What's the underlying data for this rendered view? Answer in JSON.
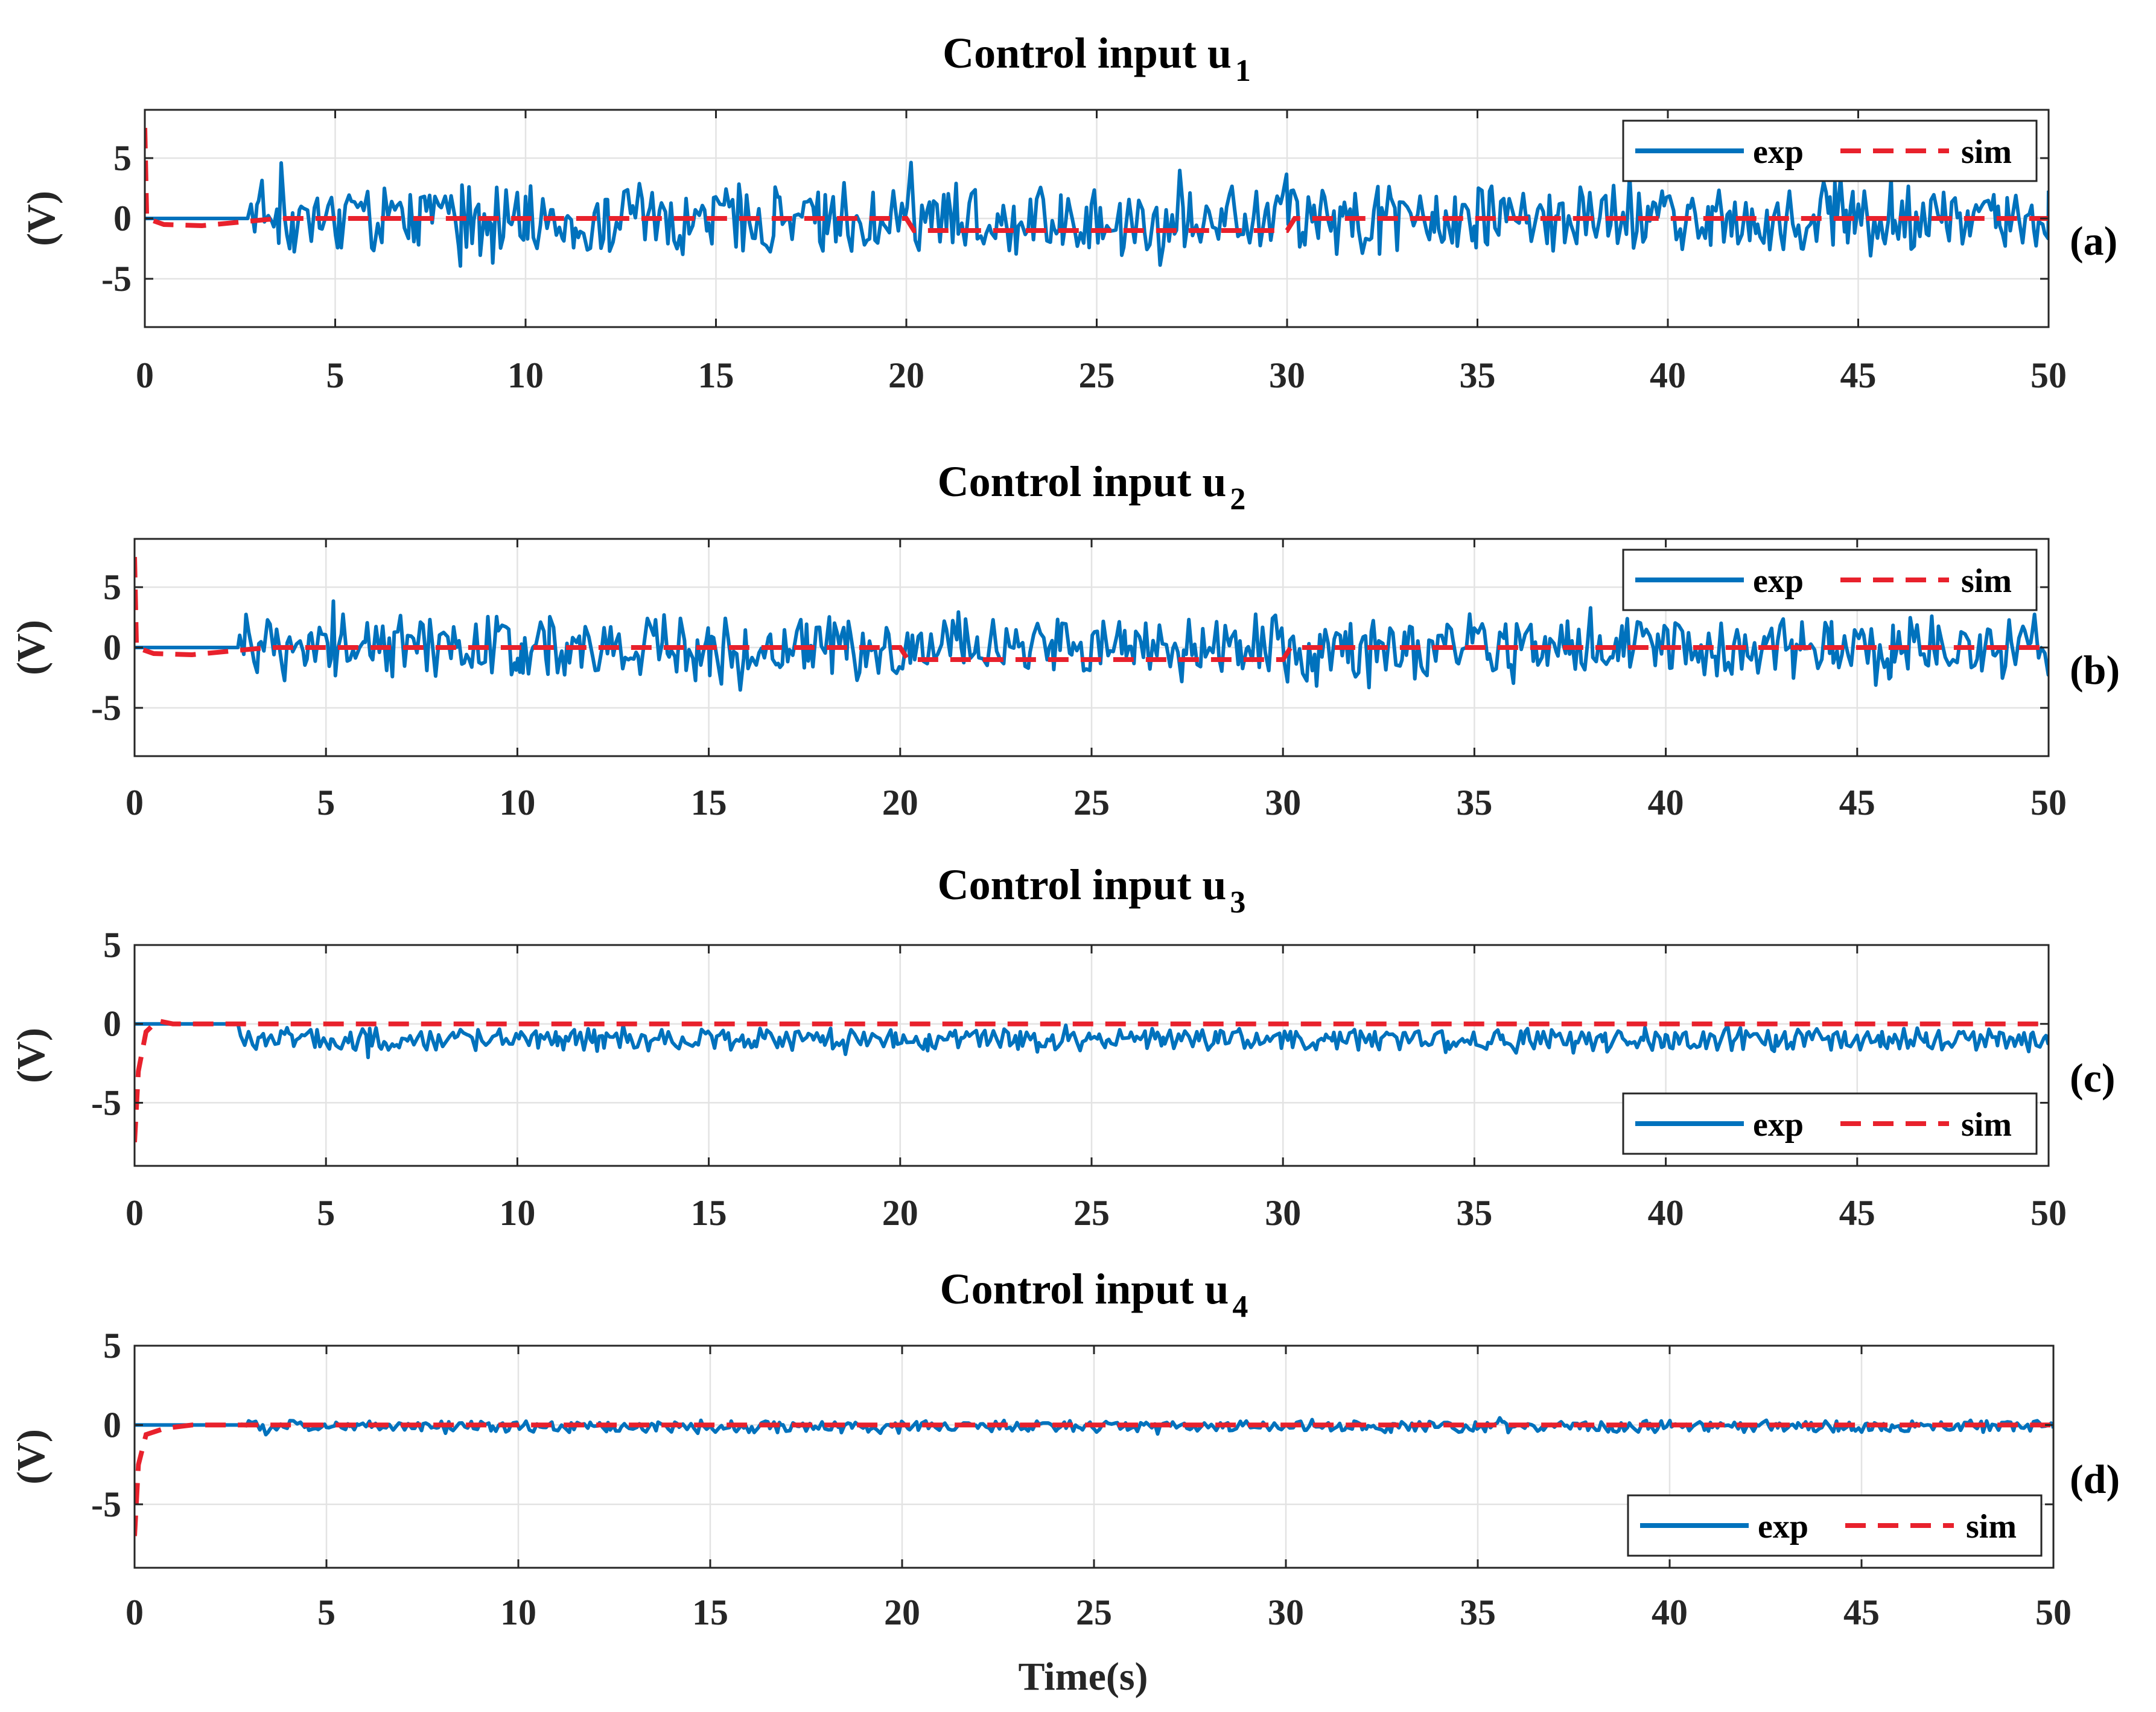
{
  "figure": {
    "xlabel": "Time(s)",
    "colors": {
      "exp": "#0072BD",
      "sim": "#E8212C"
    },
    "legend_labels": [
      "exp",
      "sim"
    ]
  },
  "chart_data": [
    {
      "type": "line",
      "title": "Control input u",
      "title_subscript": "1",
      "panel_tag": "(a)",
      "ylabel": "(V)",
      "xlim": [
        0,
        50
      ],
      "ylim": [
        -9,
        9
      ],
      "xticks": [
        0,
        5,
        10,
        15,
        20,
        25,
        30,
        35,
        40,
        45,
        50
      ],
      "yticks": [
        -5,
        0,
        5
      ],
      "ytick_labels": [
        "-5",
        "0",
        "5"
      ],
      "legend_location": "top-right",
      "series": [
        {
          "name": "exp",
          "color": "#0072BD",
          "style": "solid",
          "description": "0 V until t≈2.7 s, then oscillates between roughly -5 and +5 V",
          "active_from": 2.7,
          "amplitude": 3.2,
          "offset": 0.0
        },
        {
          "name": "sim",
          "color": "#E8212C",
          "style": "dashed",
          "points": [
            [
              0,
              7.5
            ],
            [
              0.05,
              0
            ],
            [
              0.5,
              -0.5
            ],
            [
              1.5,
              -0.6
            ],
            [
              2.5,
              -0.3
            ],
            [
              3.5,
              0
            ],
            [
              20,
              0
            ],
            [
              20.2,
              -1
            ],
            [
              30,
              -1
            ],
            [
              30.2,
              0
            ],
            [
              50,
              0
            ]
          ]
        }
      ]
    },
    {
      "type": "line",
      "title": "Control input u",
      "title_subscript": "2",
      "panel_tag": "(b)",
      "ylabel": "(V)",
      "xlim": [
        0,
        50
      ],
      "ylim": [
        -9,
        9
      ],
      "xticks": [
        0,
        5,
        10,
        15,
        20,
        25,
        30,
        35,
        40,
        45,
        50
      ],
      "yticks": [
        -5,
        0,
        5
      ],
      "ytick_labels": [
        "-5",
        "0",
        "5"
      ],
      "legend_location": "top-right",
      "series": [
        {
          "name": "exp",
          "color": "#0072BD",
          "style": "solid",
          "description": "0 V until t≈2.7 s, then oscillates between roughly -5 and +5 V",
          "active_from": 2.7,
          "amplitude": 3.0,
          "offset": 0.0
        },
        {
          "name": "sim",
          "color": "#E8212C",
          "style": "dashed",
          "points": [
            [
              0,
              7.5
            ],
            [
              0.05,
              0
            ],
            [
              0.5,
              -0.5
            ],
            [
              1.5,
              -0.6
            ],
            [
              2.5,
              -0.3
            ],
            [
              3.5,
              0
            ],
            [
              20,
              0
            ],
            [
              20.2,
              -1
            ],
            [
              30,
              -1
            ],
            [
              30.2,
              0
            ],
            [
              50,
              0
            ]
          ]
        }
      ]
    },
    {
      "type": "line",
      "title": "Control input u",
      "title_subscript": "3",
      "panel_tag": "(c)",
      "ylabel": "(V)",
      "xlim": [
        0,
        50
      ],
      "ylim": [
        -9,
        5
      ],
      "xticks": [
        0,
        5,
        10,
        15,
        20,
        25,
        30,
        35,
        40,
        45,
        50
      ],
      "yticks": [
        -5,
        0,
        5
      ],
      "ytick_labels": [
        "-5",
        "0",
        "5"
      ],
      "legend_location": "bottom-right",
      "series": [
        {
          "name": "exp",
          "color": "#0072BD",
          "style": "solid",
          "description": "0 V until t≈2.7 s, then fluctuates around -1 V between about -2.5 and +0.8 V",
          "active_from": 2.7,
          "amplitude": 0.8,
          "offset": -1.0
        },
        {
          "name": "sim",
          "color": "#E8212C",
          "style": "dashed",
          "points": [
            [
              0,
              -7.5
            ],
            [
              0.1,
              -3
            ],
            [
              0.3,
              -0.5
            ],
            [
              0.6,
              0.2
            ],
            [
              1.0,
              0
            ],
            [
              50,
              0
            ]
          ]
        }
      ]
    },
    {
      "type": "line",
      "title": "Control input u",
      "title_subscript": "4",
      "panel_tag": "(d)",
      "ylabel": "(V)",
      "xlim": [
        0,
        50
      ],
      "ylim": [
        -9,
        5
      ],
      "xticks": [
        0,
        5,
        10,
        15,
        20,
        25,
        30,
        35,
        40,
        45,
        50
      ],
      "yticks": [
        -5,
        0,
        5
      ],
      "ytick_labels": [
        "-5",
        "0",
        "5"
      ],
      "legend_location": "bottom-right",
      "series": [
        {
          "name": "exp",
          "color": "#0072BD",
          "style": "solid",
          "description": "0 V until t≈2.7 s, then small fluctuations around 0 V between about -1 and +1 V",
          "active_from": 2.7,
          "amplitude": 0.4,
          "offset": -0.1
        },
        {
          "name": "sim",
          "color": "#E8212C",
          "style": "dashed",
          "points": [
            [
              0,
              -7
            ],
            [
              0.1,
              -2.5
            ],
            [
              0.3,
              -0.6
            ],
            [
              0.8,
              -0.2
            ],
            [
              1.5,
              0
            ],
            [
              50,
              0
            ]
          ]
        }
      ]
    }
  ]
}
